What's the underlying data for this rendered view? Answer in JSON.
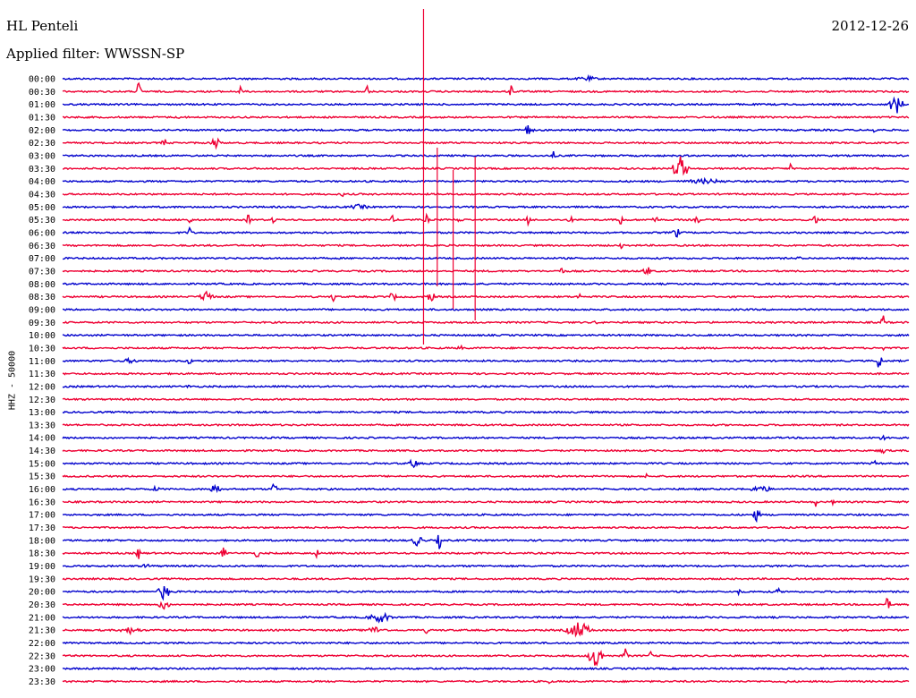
{
  "header": {
    "station": "HL Penteli",
    "date": "2012-12-26",
    "filter": "Applied filter: WWSSN-SP"
  },
  "colors": {
    "even": "#0000cc",
    "odd": "#ee0033"
  },
  "chart_data": {
    "type": "line",
    "ylabel": "HHZ - 50000",
    "rows": [
      {
        "label": "00:00",
        "events": [
          {
            "x": 0.62,
            "a": 3,
            "w": 0.02
          }
        ]
      },
      {
        "label": "00:30",
        "events": [
          {
            "x": 0.09,
            "a": 12,
            "w": 0.004
          },
          {
            "x": 0.21,
            "a": 6,
            "w": 0.004
          },
          {
            "x": 0.36,
            "a": 8,
            "w": 0.004
          },
          {
            "x": 0.53,
            "a": 10,
            "w": 0.003
          }
        ]
      },
      {
        "label": "01:00",
        "events": [
          {
            "x": 0.985,
            "a": 11,
            "w": 0.012
          }
        ]
      },
      {
        "label": "01:30",
        "events": [
          {
            "x": 0.14,
            "a": 2,
            "w": 0.01
          }
        ]
      },
      {
        "label": "02:00",
        "events": [
          {
            "x": 0.55,
            "a": 7,
            "w": 0.008
          },
          {
            "x": 0.96,
            "a": 6,
            "w": 0.003
          }
        ]
      },
      {
        "label": "02:30",
        "events": [
          {
            "x": 0.12,
            "a": 6,
            "w": 0.004
          },
          {
            "x": 0.18,
            "a": 8,
            "w": 0.008
          }
        ]
      },
      {
        "label": "03:00",
        "events": [
          {
            "x": 0.58,
            "a": 5,
            "w": 0.004
          }
        ]
      },
      {
        "label": "03:30",
        "events": [
          {
            "x": 0.73,
            "a": 15,
            "w": 0.012
          },
          {
            "x": 0.86,
            "a": 5,
            "w": 0.003
          }
        ]
      },
      {
        "label": "04:00",
        "events": [
          {
            "x": 0.76,
            "a": 3,
            "w": 0.04
          }
        ]
      },
      {
        "label": "04:30",
        "events": [
          {
            "x": 0.33,
            "a": 4,
            "w": 0.003
          }
        ]
      },
      {
        "label": "05:00",
        "events": [
          {
            "x": 0.35,
            "a": 3,
            "w": 0.02
          }
        ]
      },
      {
        "label": "05:30",
        "events": [
          {
            "x": 0.15,
            "a": 5,
            "w": 0.004
          },
          {
            "x": 0.22,
            "a": 8,
            "w": 0.004
          },
          {
            "x": 0.25,
            "a": 6,
            "w": 0.004
          },
          {
            "x": 0.39,
            "a": 5,
            "w": 0.004
          },
          {
            "x": 0.43,
            "a": 7,
            "w": 0.004
          },
          {
            "x": 0.47,
            "a": 6,
            "w": 0.004
          },
          {
            "x": 0.55,
            "a": 6,
            "w": 0.004
          },
          {
            "x": 0.6,
            "a": 5,
            "w": 0.004
          },
          {
            "x": 0.66,
            "a": 10,
            "w": 0.004
          },
          {
            "x": 0.7,
            "a": 8,
            "w": 0.004
          },
          {
            "x": 0.75,
            "a": 6,
            "w": 0.004
          },
          {
            "x": 0.89,
            "a": 8,
            "w": 0.004
          }
        ]
      },
      {
        "label": "06:00",
        "events": [
          {
            "x": 0.15,
            "a": 8,
            "w": 0.003
          },
          {
            "x": 0.725,
            "a": 7,
            "w": 0.006
          }
        ]
      },
      {
        "label": "06:30",
        "events": [
          {
            "x": 0.66,
            "a": 4,
            "w": 0.003
          }
        ]
      },
      {
        "label": "07:00",
        "events": [
          {
            "x": 0.87,
            "a": 4,
            "w": 0.003
          }
        ]
      },
      {
        "label": "07:30",
        "events": [
          {
            "x": 0.59,
            "a": 6,
            "w": 0.004
          },
          {
            "x": 0.69,
            "a": 8,
            "w": 0.006
          }
        ]
      },
      {
        "label": "08:00",
        "events": []
      },
      {
        "label": "08:30",
        "events": [
          {
            "x": 0.17,
            "a": 8,
            "w": 0.01
          },
          {
            "x": 0.32,
            "a": 6,
            "w": 0.004
          },
          {
            "x": 0.39,
            "a": 6,
            "w": 0.006
          },
          {
            "x": 0.435,
            "a": 6,
            "w": 0.008
          },
          {
            "x": 0.61,
            "a": 6,
            "w": 0.003
          }
        ]
      },
      {
        "label": "09:00",
        "events": []
      },
      {
        "label": "09:30",
        "events": [
          {
            "x": 0.63,
            "a": 3,
            "w": 0.003
          },
          {
            "x": 0.97,
            "a": 10,
            "w": 0.004
          }
        ]
      },
      {
        "label": "10:00",
        "events": []
      },
      {
        "label": "10:30",
        "events": [
          {
            "x": 0.47,
            "a": 3,
            "w": 0.006
          },
          {
            "x": 0.97,
            "a": 4,
            "w": 0.003
          }
        ]
      },
      {
        "label": "11:00",
        "events": [
          {
            "x": 0.08,
            "a": 3,
            "w": 0.015
          },
          {
            "x": 0.15,
            "a": 8,
            "w": 0.003
          },
          {
            "x": 0.965,
            "a": 12,
            "w": 0.004
          }
        ]
      },
      {
        "label": "11:30",
        "events": []
      },
      {
        "label": "12:00",
        "events": [
          {
            "x": 0.15,
            "a": 2,
            "w": 0.01
          }
        ]
      },
      {
        "label": "12:30",
        "events": []
      },
      {
        "label": "13:00",
        "events": []
      },
      {
        "label": "13:30",
        "events": []
      },
      {
        "label": "14:00",
        "events": [
          {
            "x": 0.97,
            "a": 3,
            "w": 0.01
          }
        ]
      },
      {
        "label": "14:30",
        "events": [
          {
            "x": 0.97,
            "a": 3,
            "w": 0.01
          }
        ]
      },
      {
        "label": "15:00",
        "events": [
          {
            "x": 0.415,
            "a": 6,
            "w": 0.008
          },
          {
            "x": 0.96,
            "a": 3,
            "w": 0.008
          }
        ]
      },
      {
        "label": "15:30",
        "events": [
          {
            "x": 0.69,
            "a": 3,
            "w": 0.003
          }
        ]
      },
      {
        "label": "16:00",
        "events": [
          {
            "x": 0.11,
            "a": 3,
            "w": 0.01
          },
          {
            "x": 0.18,
            "a": 8,
            "w": 0.008
          },
          {
            "x": 0.25,
            "a": 10,
            "w": 0.004
          },
          {
            "x": 0.825,
            "a": 4,
            "w": 0.02
          }
        ]
      },
      {
        "label": "16:30",
        "events": [
          {
            "x": 0.89,
            "a": 6,
            "w": 0.003
          },
          {
            "x": 0.91,
            "a": 3,
            "w": 0.003
          }
        ]
      },
      {
        "label": "17:00",
        "events": [
          {
            "x": 0.82,
            "a": 8,
            "w": 0.006
          }
        ]
      },
      {
        "label": "17:30",
        "events": []
      },
      {
        "label": "18:00",
        "events": [
          {
            "x": 0.42,
            "a": 7,
            "w": 0.01
          },
          {
            "x": 0.445,
            "a": 10,
            "w": 0.004
          }
        ]
      },
      {
        "label": "18:30",
        "events": [
          {
            "x": 0.09,
            "a": 8,
            "w": 0.004
          },
          {
            "x": 0.19,
            "a": 10,
            "w": 0.004
          },
          {
            "x": 0.23,
            "a": 6,
            "w": 0.004
          },
          {
            "x": 0.3,
            "a": 6,
            "w": 0.004
          }
        ]
      },
      {
        "label": "19:00",
        "events": [
          {
            "x": 0.1,
            "a": 3,
            "w": 0.01
          }
        ]
      },
      {
        "label": "19:30",
        "events": []
      },
      {
        "label": "20:00",
        "events": [
          {
            "x": 0.12,
            "a": 10,
            "w": 0.01
          },
          {
            "x": 0.8,
            "a": 6,
            "w": 0.003
          },
          {
            "x": 0.845,
            "a": 6,
            "w": 0.003
          }
        ]
      },
      {
        "label": "20:30",
        "events": [
          {
            "x": 0.12,
            "a": 6,
            "w": 0.01
          },
          {
            "x": 0.975,
            "a": 10,
            "w": 0.004
          }
        ]
      },
      {
        "label": "21:00",
        "events": [
          {
            "x": 0.375,
            "a": 6,
            "w": 0.02
          },
          {
            "x": 0.59,
            "a": 4,
            "w": 0.003
          }
        ]
      },
      {
        "label": "21:30",
        "events": [
          {
            "x": 0.08,
            "a": 4,
            "w": 0.02
          },
          {
            "x": 0.37,
            "a": 4,
            "w": 0.02
          },
          {
            "x": 0.43,
            "a": 4,
            "w": 0.004
          },
          {
            "x": 0.61,
            "a": 10,
            "w": 0.02
          }
        ]
      },
      {
        "label": "22:00",
        "events": []
      },
      {
        "label": "22:30",
        "events": [
          {
            "x": 0.63,
            "a": 14,
            "w": 0.012
          },
          {
            "x": 0.665,
            "a": 10,
            "w": 0.004
          },
          {
            "x": 0.695,
            "a": 6,
            "w": 0.003
          }
        ]
      },
      {
        "label": "23:00",
        "events": []
      },
      {
        "label": "23:30",
        "events": [
          {
            "x": 0.575,
            "a": 3,
            "w": 0.003
          },
          {
            "x": 0.855,
            "a": 3,
            "w": 0.003
          }
        ]
      }
    ],
    "spikes": [
      {
        "x": 0.4265,
        "y0": 10,
        "y1": 385
      },
      {
        "x": 0.4427,
        "y0": 165,
        "y1": 320
      },
      {
        "x": 0.4615,
        "y0": 190,
        "y1": 345
      },
      {
        "x": 0.4875,
        "y0": 175,
        "y1": 358
      }
    ]
  }
}
